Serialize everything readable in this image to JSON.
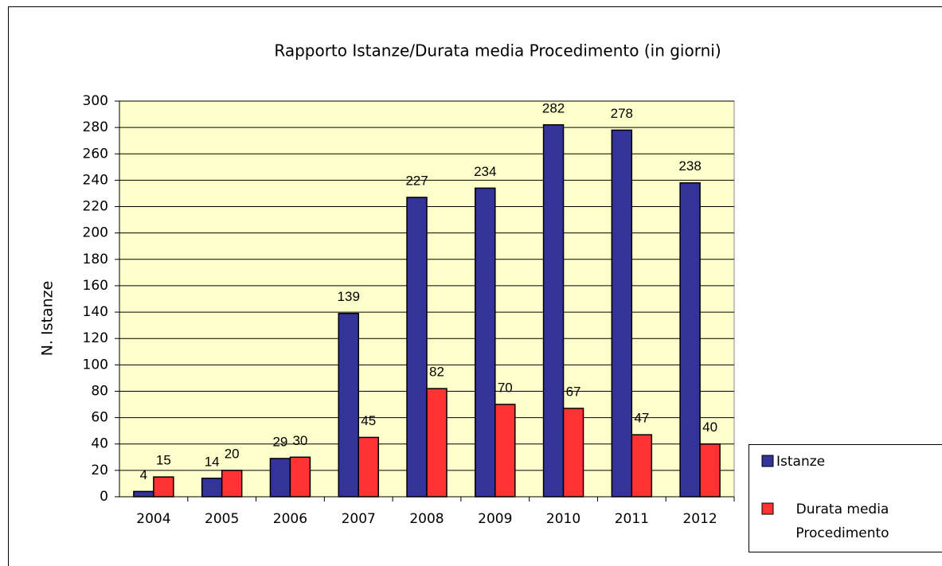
{
  "chart_data": {
    "type": "bar",
    "title": "Rapporto Istanze/Durata media Procedimento (in giorni)",
    "y_label": "N. Istanze",
    "categories": [
      "2004",
      "2005",
      "2006",
      "2007",
      "2008",
      "2009",
      "2010",
      "2011",
      "2012"
    ],
    "series": [
      {
        "name": "Istanze",
        "color": "#333399",
        "values": [
          4,
          14,
          29,
          139,
          227,
          234,
          282,
          278,
          238
        ]
      },
      {
        "name": "Durata media Procedimento",
        "color": "#ff3333",
        "values": [
          15,
          20,
          30,
          45,
          82,
          70,
          67,
          47,
          40
        ]
      }
    ],
    "ylim": [
      0,
      300
    ],
    "yticks": [
      0,
      20,
      40,
      60,
      80,
      100,
      120,
      140,
      160,
      180,
      200,
      220,
      240,
      260,
      280,
      300
    ],
    "grid": true,
    "legend": "bottom-right"
  }
}
